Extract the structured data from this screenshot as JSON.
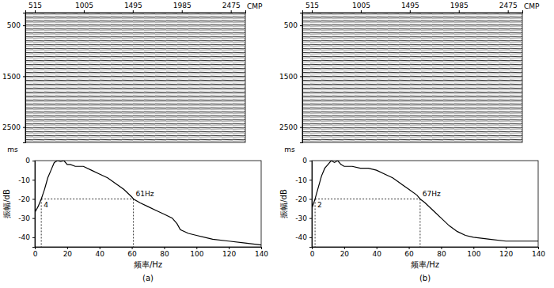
{
  "chart_data": [
    {
      "type": "image",
      "x_label": "CMP",
      "y_label": "ms",
      "xlim": [
        420,
        2620
      ],
      "xticks": [
        515,
        1005,
        1495,
        1985,
        2475
      ],
      "ylim": [
        250,
        2800
      ],
      "yticks": [
        500,
        1500,
        2500
      ]
    },
    {
      "type": "line",
      "x_label": "频率/Hz",
      "y_label": "振幅/dB",
      "caption": "(a)",
      "color": "#000000",
      "x": [
        0,
        2,
        4,
        6,
        8,
        10,
        12,
        14,
        16,
        18,
        20,
        22,
        25,
        30,
        35,
        40,
        45,
        50,
        55,
        60,
        61,
        65,
        70,
        75,
        80,
        85,
        88,
        90,
        95,
        100,
        110,
        120,
        130,
        140
      ],
      "values": [
        -27,
        -24,
        -20,
        -15,
        -9,
        -5,
        -1,
        0,
        -0.5,
        0,
        -2,
        -2,
        -3,
        -3,
        -5,
        -7,
        -9,
        -12,
        -15,
        -19,
        -20,
        -22,
        -24,
        -26,
        -28,
        -30,
        -33,
        -36,
        -38,
        -39,
        -41,
        -42,
        -43,
        -44
      ],
      "xlim": [
        0,
        140
      ],
      "xticks": [
        0,
        20,
        40,
        60,
        80,
        100,
        120,
        140
      ],
      "ylim": [
        -45,
        0
      ],
      "yticks": [
        0,
        -10,
        -20,
        -30,
        -40
      ],
      "annotations": [
        {
          "x": 4,
          "y": -20,
          "text": "4"
        },
        {
          "x": 61,
          "y": -20,
          "text": "61Hz"
        }
      ]
    },
    {
      "type": "image",
      "x_label": "CMP",
      "y_label": "ms",
      "xlim": [
        420,
        2620
      ],
      "xticks": [
        515,
        1005,
        1495,
        1985,
        2475
      ],
      "ylim": [
        250,
        2800
      ],
      "yticks": [
        500,
        1500,
        2500
      ]
    },
    {
      "type": "line",
      "x_label": "频率/Hz",
      "y_label": "振幅/dB",
      "caption": "(b)",
      "color": "#000000",
      "x": [
        0,
        2,
        4,
        6,
        8,
        10,
        12,
        14,
        16,
        18,
        20,
        25,
        30,
        35,
        40,
        45,
        50,
        55,
        60,
        65,
        67,
        70,
        75,
        80,
        85,
        90,
        95,
        100,
        110,
        120,
        130,
        140
      ],
      "values": [
        -25,
        -20,
        -14,
        -8,
        -4,
        -2,
        0,
        -1,
        0,
        -2,
        -3,
        -3,
        -4,
        -4,
        -5,
        -7,
        -9,
        -12,
        -15,
        -18,
        -20,
        -22,
        -26,
        -30,
        -34,
        -37,
        -39,
        -40,
        -41,
        -42,
        -42,
        -42
      ],
      "xlim": [
        0,
        140
      ],
      "xticks": [
        0,
        20,
        40,
        60,
        80,
        100,
        120,
        140
      ],
      "ylim": [
        -45,
        0
      ],
      "yticks": [
        0,
        -10,
        -20,
        -30,
        -40
      ],
      "annotations": [
        {
          "x": 2,
          "y": -20,
          "text": "2"
        },
        {
          "x": 67,
          "y": -20,
          "text": "67Hz"
        }
      ]
    }
  ]
}
